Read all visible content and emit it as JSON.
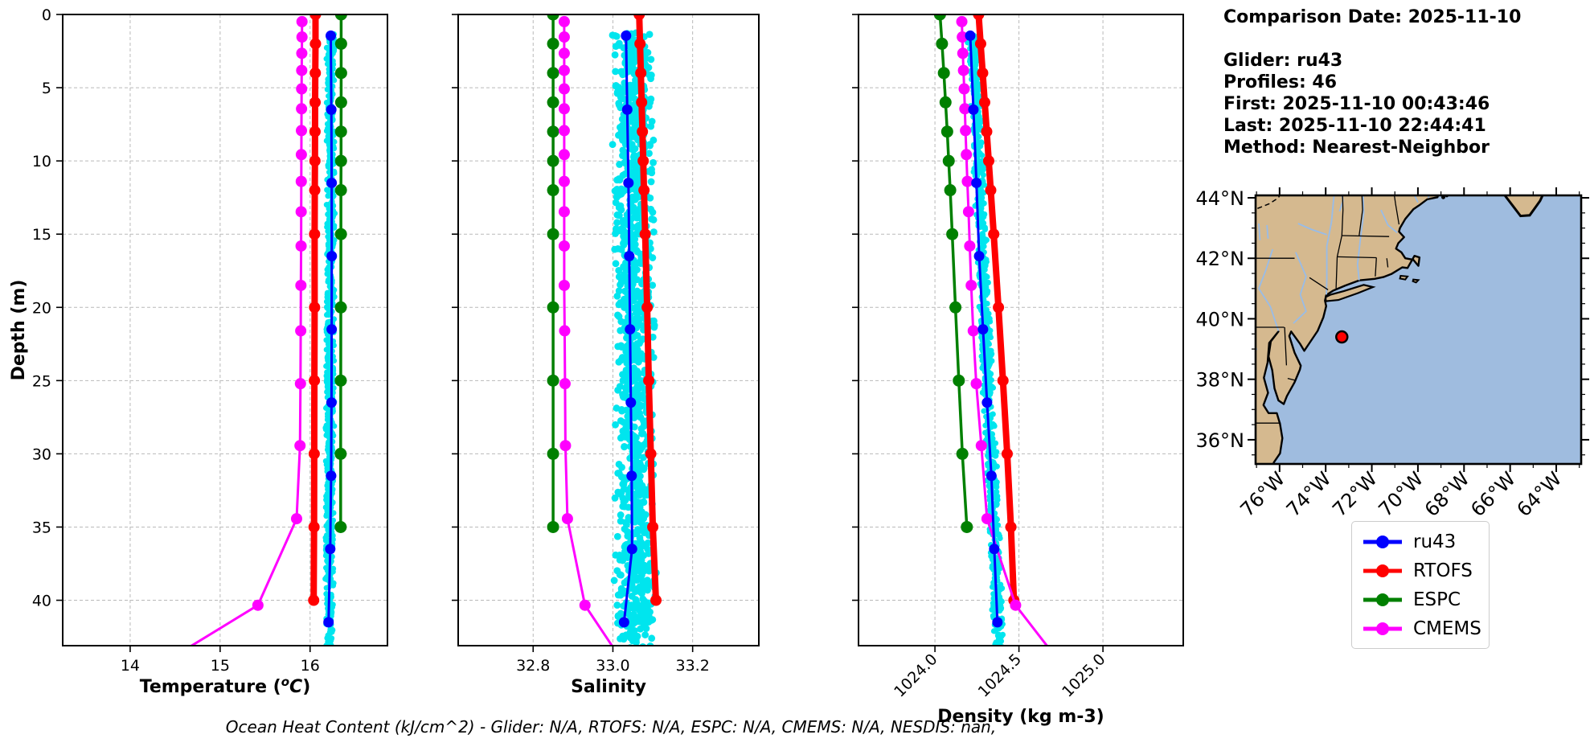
{
  "info_panel": {
    "comparison_date": "Comparison Date: 2025-11-10",
    "glider": "Glider: ru43",
    "profiles": "Profiles: 46",
    "first": "First: 2025-11-10 00:43:46",
    "last": "Last: 2025-11-10 22:44:41",
    "method": "Method: Nearest-Neighbor"
  },
  "footer": {
    "text": "Ocean Heat Content (kJ/cm^2) - Glider: N/A,  RTOFS: N/A,  ESPC: N/A,  CMEMS: N/A,  NESDIS: nan,"
  },
  "legend": {
    "entries": [
      {
        "label": "ru43",
        "color": "#0000FF"
      },
      {
        "label": "RTOFS",
        "color": "#FF0000"
      },
      {
        "label": "ESPC",
        "color": "#008000"
      },
      {
        "label": "CMEMS",
        "color": "#FF00FF"
      }
    ]
  },
  "map": {
    "extent": {
      "lon_min": -77.04,
      "lon_max": -62.92,
      "lat_min": 35.2,
      "lat_max": 44.08
    },
    "lat_ticks": [
      {
        "value": 44,
        "label": "44°N"
      },
      {
        "value": 42,
        "label": "42°N"
      },
      {
        "value": 40,
        "label": "40°N"
      },
      {
        "value": 38,
        "label": "38°N"
      },
      {
        "value": 36,
        "label": "36°N"
      }
    ],
    "lon_ticks": [
      {
        "value": -76,
        "label": "76°W"
      },
      {
        "value": -74,
        "label": "74°W"
      },
      {
        "value": -72,
        "label": "72°W"
      },
      {
        "value": -70,
        "label": "70°W"
      },
      {
        "value": -68,
        "label": "68°W"
      },
      {
        "value": -66,
        "label": "66°W"
      },
      {
        "value": -64,
        "label": "64°W"
      }
    ],
    "marker": {
      "lon": -73.3,
      "lat": 39.4,
      "color": "#FF0000",
      "edge": "#000000"
    },
    "colors": {
      "ocean": "#9fbcdf",
      "land": "#d5b98f",
      "coast": "#000000",
      "border": "#000000",
      "river": "#98bce8",
      "outside": "#bfbfbf"
    }
  },
  "chart_data": [
    {
      "id": "temperature",
      "type": "line",
      "xlabel": "Temperature (^oC)",
      "ylabel": "Depth (m)",
      "xlim": [
        13.25,
        16.86
      ],
      "ylim": [
        0,
        43.1
      ],
      "xticks": [
        14,
        15,
        16
      ],
      "xtick_labels": [
        "14",
        "15",
        "16"
      ],
      "xtick_rotation": 0,
      "yticks": [
        0,
        5,
        10,
        15,
        20,
        25,
        30,
        35,
        40
      ],
      "show_ytick_labels": true,
      "grid": true,
      "series": [
        {
          "name": "RTOFS",
          "color": "#FF0000",
          "line_width": 8,
          "marker_size": 7,
          "depths": [
            0,
            2,
            4,
            6,
            8,
            10,
            12,
            15,
            20,
            25,
            30,
            35,
            40
          ],
          "values": [
            16.06,
            16.06,
            16.058,
            16.056,
            16.055,
            16.054,
            16.052,
            16.05,
            16.05,
            16.048,
            16.046,
            16.044,
            16.04
          ]
        },
        {
          "name": "ESPC",
          "color": "#008000",
          "line_width": 3.5,
          "marker_size": 7.5,
          "depths": [
            0,
            2,
            4,
            6,
            8,
            10,
            12,
            15,
            20,
            25,
            30,
            35
          ],
          "values": [
            16.345,
            16.345,
            16.345,
            16.345,
            16.344,
            16.344,
            16.343,
            16.343,
            16.342,
            16.341,
            16.34,
            16.34
          ]
        },
        {
          "name": "CMEMS",
          "color": "#FF00FF",
          "line_width": 3,
          "marker_size": 7,
          "depths": [
            0.49,
            1.54,
            2.65,
            3.82,
            5.08,
            6.44,
            7.93,
            9.57,
            11.4,
            13.47,
            15.81,
            18.5,
            21.6,
            25.21,
            29.44,
            34.43,
            40.34,
            43.6
          ],
          "values": [
            15.91,
            15.91,
            15.908,
            15.907,
            15.906,
            15.905,
            15.904,
            15.903,
            15.902,
            15.901,
            15.9,
            15.898,
            15.896,
            15.893,
            15.888,
            15.85,
            15.42,
            14.55
          ]
        },
        {
          "name": "ru43",
          "color": "#0000FF",
          "line_width": 3,
          "marker_size": 6.5,
          "depths": [
            1.45,
            6.5,
            11.5,
            16.5,
            21.5,
            26.5,
            31.5,
            36.5,
            41.5
          ],
          "values": [
            16.23,
            16.236,
            16.24,
            16.241,
            16.24,
            16.238,
            16.234,
            16.224,
            16.205
          ]
        }
      ],
      "scatter": {
        "name": "glider-raw-temperature",
        "color": "#00E5EE",
        "depth_range": [
          1.3,
          43.6
        ],
        "center": [
          16.23,
          16.215
        ],
        "spread": 0.05,
        "count": 850,
        "dot_r": 3.6,
        "seed": 7
      }
    },
    {
      "id": "salinity",
      "type": "line",
      "xlabel": "Salinity",
      "ylabel": "",
      "xlim": [
        32.612,
        33.366
      ],
      "ylim": [
        0,
        43.1
      ],
      "xticks": [
        32.8,
        33.0,
        33.2
      ],
      "xtick_labels": [
        "32.8",
        "33.0",
        "33.2"
      ],
      "xtick_rotation": 0,
      "yticks": [
        0,
        5,
        10,
        15,
        20,
        25,
        30,
        35,
        40
      ],
      "show_ytick_labels": false,
      "grid": true,
      "series": [
        {
          "name": "RTOFS",
          "color": "#FF0000",
          "line_width": 8,
          "marker_size": 7,
          "depths": [
            0,
            2,
            4,
            6,
            8,
            10,
            12,
            15,
            20,
            25,
            30,
            35,
            40
          ],
          "values": [
            33.066,
            33.068,
            33.07,
            33.072,
            33.074,
            33.076,
            33.078,
            33.081,
            33.086,
            33.09,
            33.095,
            33.1,
            33.108
          ]
        },
        {
          "name": "ESPC",
          "color": "#008000",
          "line_width": 3.5,
          "marker_size": 7.5,
          "depths": [
            0,
            2,
            4,
            6,
            8,
            10,
            12,
            15,
            20,
            25,
            30,
            35
          ],
          "values": [
            32.85,
            32.85,
            32.85,
            32.85,
            32.85,
            32.85,
            32.85,
            32.85,
            32.85,
            32.85,
            32.85,
            32.85
          ]
        },
        {
          "name": "CMEMS",
          "color": "#FF00FF",
          "line_width": 3,
          "marker_size": 7,
          "depths": [
            0.49,
            1.54,
            2.65,
            3.82,
            5.08,
            6.44,
            7.93,
            9.57,
            11.4,
            13.47,
            15.81,
            18.5,
            21.6,
            25.21,
            29.44,
            34.43,
            40.34,
            43.6
          ],
          "values": [
            32.878,
            32.878,
            32.878,
            32.878,
            32.878,
            32.878,
            32.878,
            32.878,
            32.878,
            32.878,
            32.878,
            32.878,
            32.879,
            32.88,
            32.881,
            32.886,
            32.93,
            33.01
          ]
        },
        {
          "name": "ru43",
          "color": "#0000FF",
          "line_width": 3,
          "marker_size": 6.5,
          "depths": [
            1.45,
            6.5,
            11.5,
            16.5,
            21.5,
            26.5,
            31.5,
            36.5,
            41.5
          ],
          "values": [
            33.033,
            33.036,
            33.039,
            33.041,
            33.043,
            33.045,
            33.047,
            33.048,
            33.028
          ]
        }
      ],
      "scatter": {
        "name": "glider-raw-salinity",
        "color": "#00E5EE",
        "depth_range": [
          1.2,
          43.6
        ],
        "center": [
          33.05,
          33.058
        ],
        "spread": 0.055,
        "count": 1150,
        "dot_r": 4.4,
        "seed": 11
      }
    },
    {
      "id": "density",
      "type": "line",
      "xlabel": "Density (kg m-3)",
      "ylabel": "",
      "xlim": [
        1023.545,
        1025.478
      ],
      "ylim": [
        0,
        43.1
      ],
      "xticks": [
        1024.0,
        1024.5,
        1025.0
      ],
      "xtick_labels": [
        "1024.0",
        "1024.5",
        "1025.0"
      ],
      "xtick_rotation": 45,
      "yticks": [
        0,
        5,
        10,
        15,
        20,
        25,
        30,
        35,
        40
      ],
      "show_ytick_labels": false,
      "grid": true,
      "series": [
        {
          "name": "RTOFS",
          "color": "#FF0000",
          "line_width": 8,
          "marker_size": 7,
          "depths": [
            0,
            2,
            4,
            6,
            8,
            10,
            12,
            15,
            20,
            25,
            30,
            35,
            40
          ],
          "values": [
            1024.26,
            1024.272,
            1024.284,
            1024.296,
            1024.308,
            1024.32,
            1024.332,
            1024.35,
            1024.378,
            1024.405,
            1024.43,
            1024.452,
            1024.47
          ]
        },
        {
          "name": "ESPC",
          "color": "#008000",
          "line_width": 3.5,
          "marker_size": 7.5,
          "depths": [
            0,
            2,
            4,
            6,
            8,
            10,
            12,
            15,
            20,
            25,
            30,
            35
          ],
          "values": [
            1024.03,
            1024.042,
            1024.053,
            1024.063,
            1024.073,
            1024.082,
            1024.091,
            1024.103,
            1024.122,
            1024.142,
            1024.163,
            1024.19
          ]
        },
        {
          "name": "CMEMS",
          "color": "#FF00FF",
          "line_width": 3,
          "marker_size": 7,
          "depths": [
            0.49,
            1.54,
            2.65,
            3.82,
            5.08,
            6.44,
            7.93,
            9.57,
            11.4,
            13.47,
            15.81,
            18.5,
            21.6,
            25.21,
            29.44,
            34.43,
            40.34,
            43.6
          ],
          "values": [
            1024.16,
            1024.163,
            1024.166,
            1024.17,
            1024.174,
            1024.178,
            1024.182,
            1024.187,
            1024.193,
            1024.2,
            1024.207,
            1024.216,
            1024.228,
            1024.246,
            1024.276,
            1024.31,
            1024.48,
            1024.7
          ]
        },
        {
          "name": "ru43",
          "color": "#0000FF",
          "line_width": 3,
          "marker_size": 6.5,
          "depths": [
            1.45,
            6.5,
            11.5,
            16.5,
            21.5,
            26.5,
            31.5,
            36.5,
            41.5
          ],
          "values": [
            1024.21,
            1024.229,
            1024.247,
            1024.263,
            1024.286,
            1024.31,
            1024.336,
            1024.353,
            1024.372
          ]
        }
      ],
      "scatter": {
        "name": "glider-raw-density",
        "color": "#00E5EE",
        "depth_range": [
          1.3,
          43.6
        ],
        "center": [
          1024.225,
          1024.385
        ],
        "spread": 0.035,
        "count": 900,
        "dot_r": 3.6,
        "seed": 23
      }
    }
  ]
}
